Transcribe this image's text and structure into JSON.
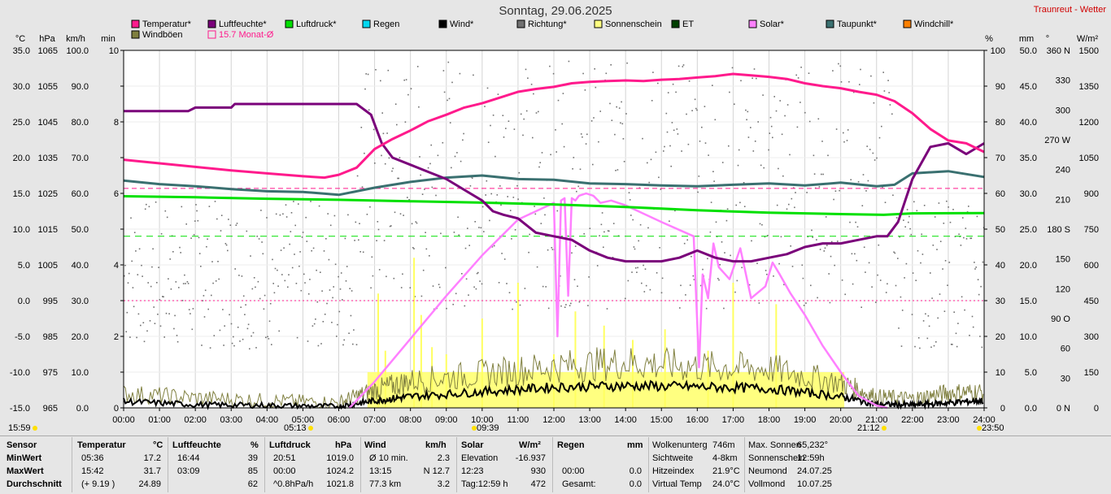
{
  "title": "Sonntag, 29.06.2025",
  "site": "Traunreut - Wetter",
  "legend": [
    {
      "label": "Temperatur*",
      "color": "#ff1a8c"
    },
    {
      "label": "Luftfeuchte*",
      "color": "#7a007a"
    },
    {
      "label": "Luftdruck*",
      "color": "#00e000"
    },
    {
      "label": "Regen",
      "color": "#00d8f0"
    },
    {
      "label": "Wind*",
      "color": "#000000"
    },
    {
      "label": "Richtung*",
      "color": "#707070"
    },
    {
      "label": "Sonnenschein",
      "color": "#ffff80"
    },
    {
      "label": "ET",
      "color": "#004000"
    },
    {
      "label": "Solar*",
      "color": "#ff80ff"
    },
    {
      "label": "Taupunkt*",
      "color": "#3a7070"
    },
    {
      "label": "Windchill*",
      "color": "#ff8000"
    },
    {
      "label": "Windböen",
      "color": "#808040"
    },
    {
      "label": "15.7 Monat-Ø",
      "color": "#ff1a8c"
    }
  ],
  "left_units": [
    "°C",
    "hPa",
    "km/h",
    "min"
  ],
  "right_units": [
    "%",
    "mm",
    "°",
    "W/m²"
  ],
  "axes": {
    "temp": [
      "35.0",
      "30.0",
      "25.0",
      "20.0",
      "15.0",
      "10.0",
      "5.0",
      "0.0",
      "-5.0",
      "-10.0",
      "-15.0"
    ],
    "hpa": [
      "1065",
      "1055",
      "1045",
      "1035",
      "1025",
      "1015",
      "1005",
      "995",
      "985",
      "975",
      "965"
    ],
    "kmh": [
      "100.0",
      "90.0",
      "80.0",
      "70.0",
      "60.0",
      "50.0",
      "40.0",
      "30.0",
      "20.0",
      "10.0",
      "0.0"
    ],
    "min": [
      {
        "v": 10,
        "t": "10"
      },
      {
        "v": 8,
        "t": "8"
      },
      {
        "v": 6,
        "t": "6"
      },
      {
        "v": 4,
        "t": "4"
      },
      {
        "v": 2,
        "t": "2"
      },
      {
        "v": 0,
        "t": "0"
      }
    ],
    "pct": [
      "100",
      "90",
      "80",
      "70",
      "60",
      "50",
      "40",
      "30",
      "20",
      "10",
      "0"
    ],
    "mm": [
      "50.0",
      "45.0",
      "40.0",
      "35.0",
      "30.0",
      "25.0",
      "20.0",
      "15.0",
      "10.0",
      "5.0",
      "0.0"
    ],
    "deg": [
      "360 N",
      "330",
      "300",
      "270 W",
      "240",
      "210",
      "180 S",
      "150",
      "120",
      "90 O",
      "60",
      "30",
      "0 N"
    ],
    "wm2": [
      "1500",
      "1350",
      "1200",
      "1050",
      "900",
      "750",
      "600",
      "450",
      "300",
      "150",
      "0"
    ],
    "times": [
      "00:00",
      "01:00",
      "02:00",
      "03:00",
      "04:00",
      "05:00",
      "06:00",
      "07:00",
      "08:00",
      "09:00",
      "10:00",
      "11:00",
      "12:00",
      "13:00",
      "14:00",
      "15:00",
      "16:00",
      "17:00",
      "18:00",
      "19:00",
      "20:00",
      "21:00",
      "22:00",
      "23:00",
      "24:00"
    ]
  },
  "sun_marks": {
    "sunrise": "05:13",
    "sunset": "21:12",
    "left": "15:59",
    "noon": "09:39",
    "right": "23:50"
  },
  "chart_data": {
    "type": "line",
    "x_unit": "hour",
    "reference_lines": {
      "temp_month_avg": 15.7,
      "pressure_avg_hpa": 1013
    },
    "series": [
      {
        "name": "Temperatur*",
        "axis": "°C",
        "color": "#ff1a8c",
        "x": [
          0,
          1,
          2,
          3,
          4,
          5,
          5.6,
          6,
          6.5,
          7,
          7.5,
          8,
          8.5,
          9,
          9.5,
          10,
          10.5,
          11,
          11.5,
          12,
          12.5,
          13,
          13.5,
          14,
          14.5,
          15,
          15.5,
          16,
          16.5,
          17,
          17.5,
          18,
          18.5,
          19,
          19.5,
          20,
          20.5,
          21,
          21.5,
          22,
          22.5,
          23,
          23.5,
          24
        ],
        "y": [
          19.7,
          19.2,
          18.7,
          18.2,
          17.8,
          17.4,
          17.2,
          17.6,
          18.6,
          21.2,
          22.6,
          23.8,
          25.1,
          26.0,
          27.0,
          27.6,
          28.4,
          29.2,
          29.6,
          29.9,
          30.4,
          30.6,
          30.7,
          30.8,
          30.7,
          30.9,
          31.0,
          31.2,
          31.4,
          31.7,
          31.5,
          31.3,
          31.0,
          30.4,
          30.0,
          29.7,
          29.2,
          28.8,
          27.9,
          26.2,
          24.0,
          22.4,
          22.0,
          20.8
        ]
      },
      {
        "name": "Luftfeuchte*",
        "axis": "%",
        "color": "#7a007a",
        "x": [
          0,
          1,
          1.8,
          2,
          3,
          3.1,
          4,
          5,
          6,
          6.5,
          6.9,
          7.2,
          7.5,
          8,
          8.5,
          9,
          9.5,
          10,
          10.3,
          10.6,
          11,
          11.5,
          12,
          12.5,
          13,
          13.5,
          14,
          14.5,
          15,
          15.5,
          16,
          16.5,
          17,
          17.5,
          18,
          18.5,
          19,
          19.5,
          20,
          20.5,
          21,
          21.3,
          21.6,
          22,
          22.5,
          23,
          23.5,
          24
        ],
        "y": [
          83,
          83,
          83,
          84,
          84,
          85,
          85,
          85,
          85,
          85,
          82,
          74,
          70,
          68,
          66,
          64,
          61,
          58,
          55,
          54,
          53,
          49,
          48,
          47,
          44,
          42,
          41,
          41,
          41,
          42,
          44,
          42,
          41,
          41,
          42,
          43,
          45,
          46,
          46,
          47,
          48,
          48,
          52,
          64,
          73,
          74,
          71,
          74
        ]
      },
      {
        "name": "Luftdruck*",
        "axis": "hPa",
        "color": "#00e000",
        "x": [
          0,
          2,
          4,
          6,
          8,
          10,
          12,
          14,
          16,
          18,
          20,
          21.2,
          22,
          24
        ],
        "y": [
          1024.2,
          1023.9,
          1023.5,
          1023.2,
          1022.8,
          1022.4,
          1021.9,
          1021.2,
          1020.3,
          1019.6,
          1019.2,
          1019.0,
          1019.4,
          1019.5
        ]
      },
      {
        "name": "Taupunkt*",
        "axis": "°C",
        "color": "#3a7070",
        "x": [
          0,
          1,
          2,
          3,
          4,
          5,
          6,
          7,
          8,
          9,
          10,
          11,
          12,
          13,
          14,
          15,
          16,
          17,
          18,
          19,
          20,
          21,
          21.5,
          22,
          23,
          24
        ],
        "y": [
          16.8,
          16.3,
          16.0,
          15.6,
          15.3,
          15.2,
          14.8,
          15.8,
          16.6,
          17.2,
          17.5,
          17.0,
          16.9,
          16.4,
          16.3,
          16.1,
          16.0,
          16.2,
          16.4,
          16.1,
          16.5,
          16.0,
          16.2,
          17.8,
          18.1,
          17.3
        ]
      },
      {
        "name": "Solar*",
        "axis": "W/m²",
        "color": "#ff80ff",
        "x": [
          6.3,
          7,
          8,
          9,
          10,
          11,
          12,
          12.1,
          12.2,
          12.3,
          12.4,
          12.5,
          12.6,
          12.7,
          12.9,
          13.1,
          13.3,
          13.6,
          14,
          15,
          15.9,
          16.05,
          16.15,
          16.3,
          16.45,
          16.6,
          16.9,
          17.2,
          17.5,
          17.9,
          18.1,
          18.3,
          18.6,
          19,
          19.5,
          20,
          20.5,
          21,
          21.3
        ],
        "y": [
          0,
          110,
          290,
          470,
          640,
          790,
          860,
          300,
          870,
          880,
          470,
          880,
          870,
          890,
          900,
          890,
          860,
          870,
          850,
          780,
          720,
          170,
          560,
          460,
          690,
          590,
          540,
          670,
          460,
          510,
          610,
          560,
          480,
          390,
          260,
          150,
          50,
          10,
          0
        ]
      },
      {
        "name": "Wind*",
        "axis": "km/h",
        "color": "#000000",
        "x": [
          0,
          2,
          4,
          6,
          7,
          8,
          10,
          12,
          14,
          16,
          18,
          20,
          21,
          22,
          23,
          24
        ],
        "y": [
          1.8,
          0.9,
          0.7,
          0.4,
          2.0,
          3.2,
          4.5,
          5.8,
          6.2,
          5.9,
          5.4,
          3.2,
          1.0,
          0.8,
          1.4,
          2.1
        ]
      },
      {
        "name": "Windböen",
        "axis": "km/h",
        "color": "#808040",
        "x": [
          0,
          2,
          4,
          6,
          7,
          8,
          10,
          12,
          14,
          16,
          18,
          20,
          21,
          22,
          23,
          24
        ],
        "y": [
          4.0,
          2.8,
          2.0,
          1.5,
          5.0,
          7.5,
          9.5,
          11.5,
          12.7,
          11.5,
          11.0,
          7.0,
          3.0,
          2.5,
          4.2,
          4.5
        ]
      },
      {
        "name": "Sonnenschein",
        "axis": "min",
        "color": "#ffff80",
        "x": [
          6.8,
          20.1
        ],
        "y": [
          1.0,
          1.0
        ]
      }
    ]
  },
  "stats": {
    "headers": [
      {
        "label": "Sensor"
      },
      {
        "label": "Temperatur",
        "unit": "°C"
      },
      {
        "label": "Luftfeuchte",
        "unit": "%"
      },
      {
        "label": "Luftdruck",
        "unit": "hPa"
      },
      {
        "label": "Wind",
        "unit": "km/h"
      },
      {
        "label": "Solar",
        "unit": "W/m²"
      },
      {
        "label": "Regen",
        "unit": "mm"
      }
    ],
    "rows": [
      {
        "label": "MinWert",
        "t_time": "05:36",
        "t_val": "17.2",
        "h_time": "16:44",
        "h_val": "39",
        "p_time": "20:51",
        "p_val": "1019.0",
        "w_lbl": "Ø 10 min.",
        "w_val": "2.3",
        "s_lbl": "Elevation",
        "s_val": "-16.937",
        "r_lbl": "",
        "r_val": ""
      },
      {
        "label": "MaxWert",
        "t_time": "15:42",
        "t_val": "31.7",
        "h_time": "03:09",
        "h_val": "85",
        "p_time": "00:00",
        "p_val": "1024.2",
        "w_lbl": "13:15",
        "w_val": "N 12.7",
        "s_lbl": "12:23",
        "s_val": "930",
        "r_lbl": "00:00",
        "r_val": "0.0"
      },
      {
        "label": "Durchschnitt",
        "t_time": "(+ 9.19 )",
        "t_val": "24.89",
        "h_time": "",
        "h_val": "62",
        "p_time": "^0.8hPa/h",
        "p_val": "1021.8",
        "w_lbl": "77.3 km",
        "w_val": "3.2",
        "s_lbl": "Tag:12:59 h",
        "s_val": "472",
        "r_lbl": "Gesamt:",
        "r_val": "0.0"
      }
    ],
    "extra1": [
      {
        "k": "Wolkenunterg",
        "v": "746m"
      },
      {
        "k": "Sichtweite",
        "v": "4-8km"
      },
      {
        "k": "Hitzeindex",
        "v": "21.9°C"
      },
      {
        "k": "Virtual Temp",
        "v": "24.0°C"
      }
    ],
    "extra2": [
      {
        "k": "Max. Sonnen",
        "v": "65,232°"
      },
      {
        "k": "Sonnenschein",
        "v": "12:59h"
      },
      {
        "k": "Neumond",
        "v": "24.07.25"
      },
      {
        "k": "Vollmond",
        "v": "10.07.25"
      }
    ]
  }
}
